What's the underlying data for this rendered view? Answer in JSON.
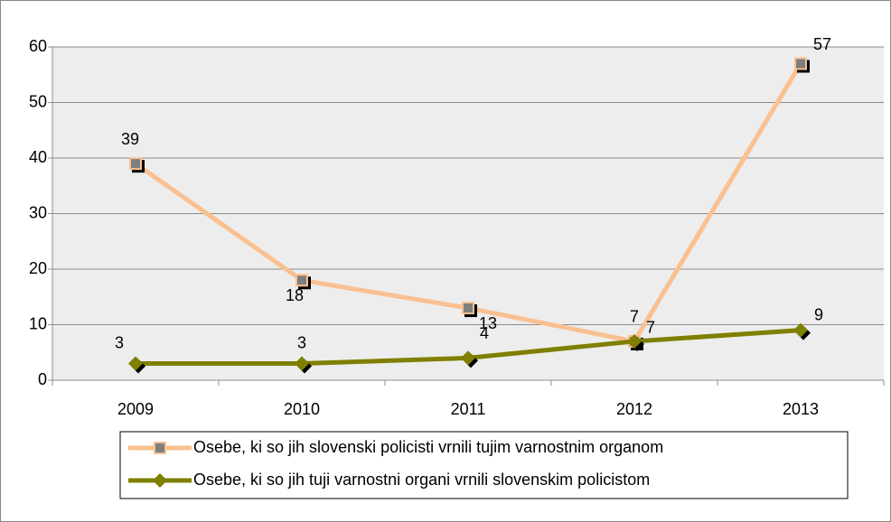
{
  "chart_data": {
    "type": "line",
    "categories": [
      "2009",
      "2010",
      "2011",
      "2012",
      "2013"
    ],
    "series": [
      {
        "name": "Osebe, ki so jih slovenski policisti vrnili tujim varnostnim organom",
        "color": "#FAC090",
        "values": [
          39,
          18,
          13,
          7,
          57
        ]
      },
      {
        "name": "Osebe, ki so jih tuji varnostni organi vrnili slovenskim policistom",
        "color": "#7F7F00",
        "values": [
          3,
          3,
          4,
          7,
          9
        ]
      }
    ],
    "ylim": [
      0,
      60
    ],
    "yticks": [
      0,
      10,
      20,
      30,
      40,
      50,
      60
    ],
    "grid": true,
    "legend": "bottom"
  }
}
